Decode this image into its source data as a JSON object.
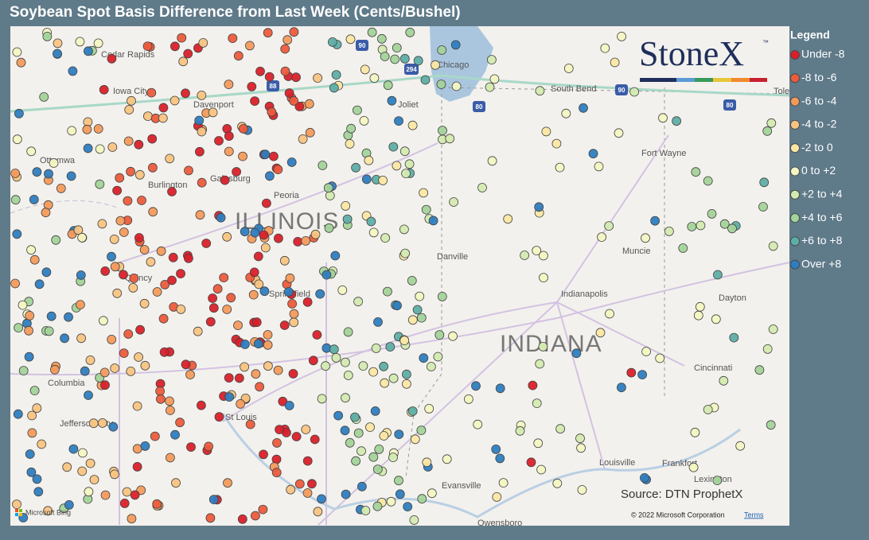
{
  "header": {
    "title": "Soybean Spot Basis Difference from Last Week (Cents/Bushel)"
  },
  "legend": {
    "title": "Legend",
    "items": [
      {
        "label": "Under -8",
        "color": "#d9202a"
      },
      {
        "label": "-8 to -6",
        "color": "#ec5b3c"
      },
      {
        "label": "-6 to -4",
        "color": "#f39a5c"
      },
      {
        "label": "-4 to -2",
        "color": "#f8c482"
      },
      {
        "label": "-2 to 0",
        "color": "#fbe7a4"
      },
      {
        "label": "0 to +2",
        "color": "#f3f5c2"
      },
      {
        "label": "+2 to +4",
        "color": "#d3eab0"
      },
      {
        "label": "+4 to +6",
        "color": "#a3d39a"
      },
      {
        "label": "+6 to +8",
        "color": "#5eaea7"
      },
      {
        "label": "Over +8",
        "color": "#2e7dc0"
      }
    ]
  },
  "logo": {
    "text": "StoneX",
    "mark": "™"
  },
  "map": {
    "states": [
      "ILLINOIS",
      "INDIANA"
    ],
    "cities": [
      "Cedar Rapids",
      "Iowa City",
      "Davenport",
      "Ottumwa",
      "Burlington",
      "Galesburg",
      "Peoria",
      "Quincy",
      "Springfield",
      "Columbia",
      "Jefferson City",
      "St Louis",
      "Chicago",
      "Joliet",
      "South Bend",
      "Fort Wayne",
      "Muncie",
      "Danville",
      "Indianapolis",
      "Dayton",
      "Cincinnati",
      "Louisville",
      "Frankfort",
      "Lexington",
      "Evansville",
      "Owensboro",
      "Tole"
    ],
    "highways": [
      "90",
      "294",
      "88",
      "80",
      "90",
      "80"
    ]
  },
  "source": "Source: DTN ProphetX",
  "attribution": {
    "bing": "Microsoft Bing",
    "copyright": "© 2022 Microsoft Corporation",
    "terms": "Terms"
  }
}
